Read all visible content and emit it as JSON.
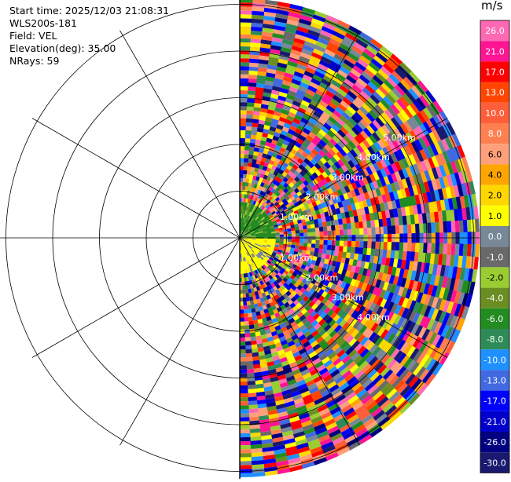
{
  "header": {
    "start_time": "Start time: 2025/12/03 21:08:31",
    "instrument": "WLS200s-181",
    "field": "Field: VEL",
    "elevation": "Elevation(deg): 35.00",
    "nrays": "NRays: 59"
  },
  "chart_data": {
    "type": "heatmap",
    "projection": "polar-ppi",
    "sector_degrees": [
      0,
      180
    ],
    "range_rings_km": [
      "1.00km",
      "2.00km",
      "3.00km",
      "4.00km",
      "5.00km"
    ],
    "colorbar": {
      "unit": "m/s",
      "levels": [
        "26.0",
        "21.0",
        "17.0",
        "13.0",
        "10.0",
        "8.0",
        "6.0",
        "4.0",
        "2.0",
        "1.0",
        "0.0",
        "-1.0",
        "-2.0",
        "-4.0",
        "-6.0",
        "-8.0",
        "-10.0",
        "-13.0",
        "-17.0",
        "-21.0",
        "-26.0",
        "-30.0"
      ],
      "colors": [
        "#ff69b4",
        "#ff1493",
        "#ff0000",
        "#ff4500",
        "#ff5e3a",
        "#ff7f50",
        "#ffa07a",
        "#ffa500",
        "#ffd700",
        "#ffff00",
        "#778899",
        "#696969",
        "#9acd32",
        "#6b8e23",
        "#228b22",
        "#2e8b57",
        "#1e90ff",
        "#4169e1",
        "#0000ff",
        "#0000cd",
        "#000080",
        "#191970"
      ]
    }
  }
}
